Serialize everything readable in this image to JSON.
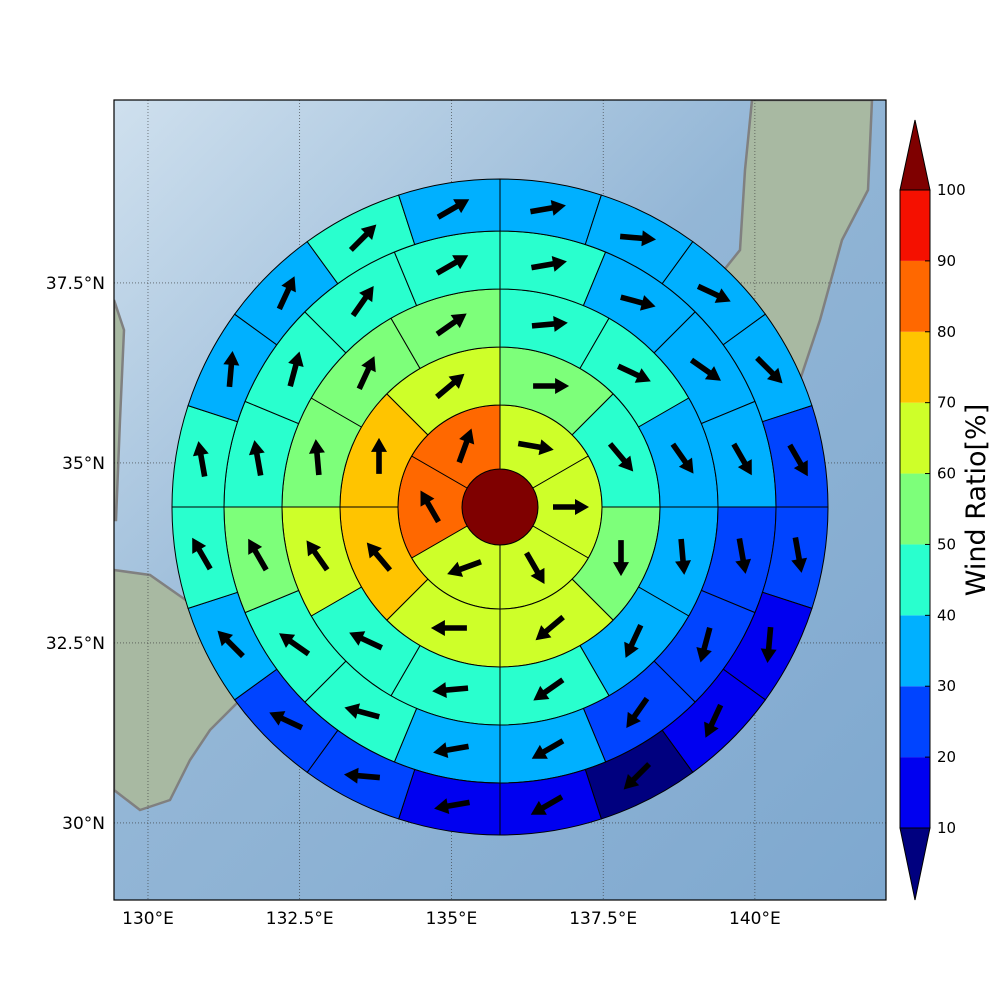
{
  "chart_data": {
    "type": "polar-sector-map",
    "xlim": [
      129.44,
      142.16
    ],
    "ylim": [
      28.93,
      40.04
    ],
    "xticks": [
      {
        "value": 130,
        "label": "130°E"
      },
      {
        "value": 132.5,
        "label": "132.5°E"
      },
      {
        "value": 135,
        "label": "135°E"
      },
      {
        "value": 137.5,
        "label": "137.5°E"
      },
      {
        "value": 140,
        "label": "140°E"
      }
    ],
    "yticks": [
      {
        "value": 30,
        "label": "30°N"
      },
      {
        "value": 32.5,
        "label": "32.5°N"
      },
      {
        "value": 35,
        "label": "35°N"
      },
      {
        "value": 37.5,
        "label": "37.5°N"
      }
    ],
    "grid": true,
    "colorbar": {
      "label": "Wind Ratio[%]",
      "levels": [
        10,
        20,
        30,
        40,
        50,
        60,
        70,
        80,
        90,
        100
      ],
      "colors": [
        "#00007f",
        "#0000f0",
        "#0044ff",
        "#00b0ff",
        "#29ffce",
        "#7dff7a",
        "#ceff29",
        "#ffc400",
        "#ff6800",
        "#f51000",
        "#7f0000"
      ]
    },
    "center": {
      "value": 100
    },
    "rings": [
      {
        "values": [
          65,
          65,
          65,
          65,
          85,
          85
        ],
        "directions": [
          100,
          90,
          150,
          250,
          330,
          20
        ]
      },
      {
        "values": [
          55,
          45,
          55,
          65,
          65,
          75,
          75,
          65
        ],
        "directions": [
          90,
          140,
          180,
          230,
          270,
          320,
          0,
          50
        ]
      },
      {
        "values": [
          45,
          45,
          35,
          35,
          35,
          45,
          45,
          45,
          65,
          55,
          55,
          55
        ],
        "directions": [
          85,
          115,
          145,
          175,
          205,
          235,
          265,
          295,
          325,
          355,
          25,
          55
        ]
      },
      {
        "values": [
          45,
          35,
          35,
          35,
          25,
          25,
          25,
          35,
          35,
          45,
          45,
          55,
          45,
          45,
          45,
          45
        ],
        "directions": [
          80,
          105,
          125,
          150,
          170,
          195,
          215,
          240,
          260,
          285,
          305,
          330,
          350,
          15,
          35,
          60
        ]
      },
      {
        "values": [
          35,
          35,
          35,
          35,
          25,
          25,
          15,
          15,
          5,
          15,
          15,
          25,
          25,
          35,
          45,
          45,
          35,
          35,
          45,
          35
        ],
        "directions": [
          80,
          95,
          115,
          135,
          150,
          170,
          185,
          205,
          225,
          240,
          260,
          275,
          295,
          315,
          330,
          350,
          5,
          25,
          45,
          60
        ]
      }
    ]
  }
}
